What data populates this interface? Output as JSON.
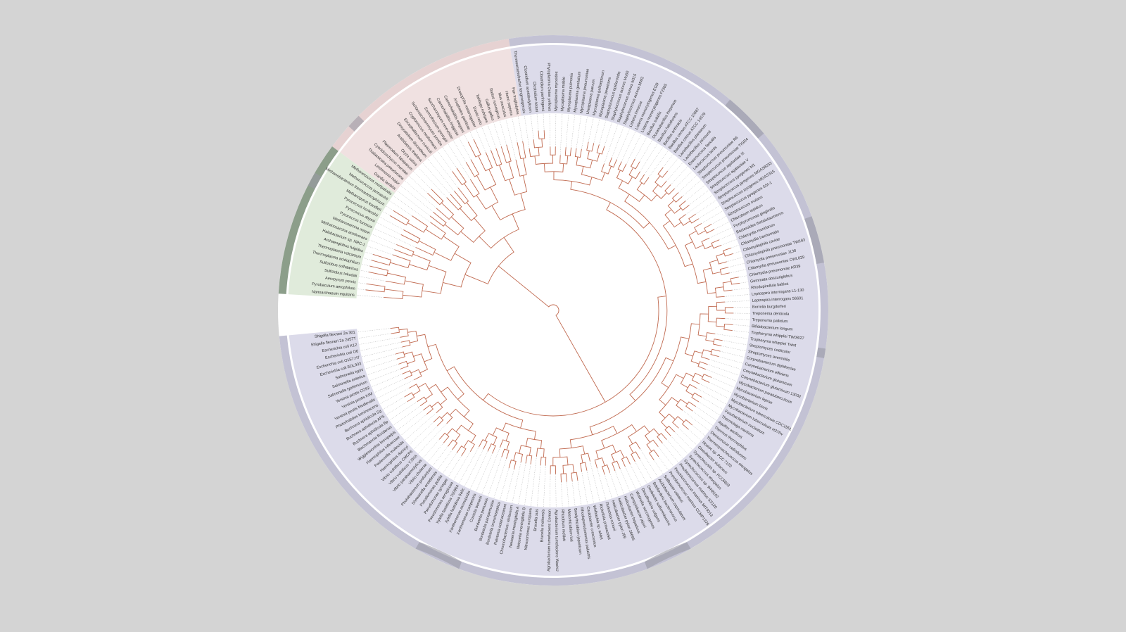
{
  "clades": [
    {
      "color": "#dcdbea",
      "band": "#c3c2d4",
      "leaves": [
        "Shigella flexneri 2a 301",
        "Shigella flexneri 2a 2457T",
        "Escherichia coli K12",
        "Escherichia coli O6",
        "Escherichia coli O157:H7",
        "Escherichia coli EDL933",
        "Salmonella typhi",
        "Salmonella enterica",
        "Salmonella typhimurium",
        "Yersinia pestis CO92",
        "Yersinia pestis KIM",
        "Yersinia pestis Medievalis",
        "Photorhabdus luminescens",
        "Buchnera aphidicola Sg",
        "Buchnera aphidicola APS",
        "Buchnera aphidicola Bp",
        "Blochmannia floridanus",
        "Wigglesworthia brevipalpis",
        "Haemophilus influenzae",
        "Pasteurella multocida",
        "Haemophilus ducreyi",
        "Vibrio vulnificus CMCP6",
        "Vibrio vulnificus YJ016",
        "Vibrio parahaemolyticus",
        "Vibrio cholerae",
        "Photobacterium profundum",
        "Shewanella oneidensis",
        "Pseudomonas putida",
        "Pseudomonas syringae",
        "Pseudomonas aeruginosa",
        "Xylella fastidiosa 700964",
        "Xylella fastidiosa 9a5c",
        "Xanthomonas axonopodis",
        "Xanthomonas campestris",
        "Coxiella burnetii",
        "Bordetella pertussis",
        "Bordetella parapertussis",
        "Bordetella bronchiseptica",
        "Ralstonia solanacearum",
        "Chromobacterium violaceum",
        "Neisseria meningitidis A",
        "Neisseria meningitidis B",
        "Nitrosomonas europaea",
        "Brucella suis",
        "Brucella melitensis",
        "Agrobacterium tumefaciens Cereon",
        "Agrobacterium tumefaciens WashU",
        "Rhizobium meliloti",
        "Mesorhizobium loti",
        "Bradyrhizobium japonicum",
        "Rhodopseudomonas palustris",
        "Caulobacter crescentus",
        "Wolbachia sp. wMel",
        "Rickettsia prowazekii",
        "Rickettsia conorii",
        "Helicobacter pylori J99",
        "Helicobacter pylori 26695",
        "Helicobacter hepaticus",
        "Campylobacter jejuni",
        "Wolinella succinogenes",
        "Desulfovibrio vulgaris",
        "Geobacter sulfurreducens",
        "Bdellovibrio bacteriovorus",
        "Acidobacterium capsulatum",
        "Solibacter usitatus",
        "Prochlorococcus marinus CCMP1378",
        "Prochlorococcus marinus MIT9313",
        "Prochlorococcus marinus SS120",
        "Synechococcus sp. WH8102",
        "Synechococcus elongatus",
        "Synechocystis sp. PCC6803",
        "Gloeobacter violaceus",
        "Nostoc sp. PCC 7120",
        "Thermosynechococcus elongatus",
        "Deinococcus radiodurans",
        "Thermus thermophilus",
        "Aquifex aeolicus",
        "Thermotoga maritima",
        "Fusobacterium nucleatum",
        "Mycobacterium tuberculosis H37Rv",
        "Mycobacterium tuberculosis CDC1551",
        "Mycobacterium bovis",
        "Mycobacterium leprae",
        "Mycobacterium paratuberculosis",
        "Corynebacterium glutamicum 13032",
        "Corynebacterium glutamicum",
        "Corynebacterium efficiens",
        "Corynebacterium diphtheriae",
        "Streptomyces avermitilis",
        "Streptomyces coelicolor",
        "Tropheryma whipplei Twist",
        "Tropheryma whipplei TW08/27",
        "Bifidobacterium longum",
        "Treponema pallidum",
        "Treponema denticola",
        "Borrelia burgdorferi",
        "Leptospira interrogans 56601",
        "Leptospira interrogans L1-130",
        "Rhodopirellula baltica",
        "Gemmata obscuriglobus",
        "Chlamydia pneumoniae AR39",
        "Chlamydia pneumoniae CWL029",
        "Chlamydia pneumoniae J138",
        "Chlamydophila pneumoniae TW183",
        "Chlamydophila caviae",
        "Chlamydia trachomatis",
        "Chlamydia muridarum",
        "Bacteroides thetaiotaomicron",
        "Porphyromonas gingivalis",
        "Chlorobium tepidum",
        "Streptococcus mutans",
        "Streptococcus pyogenes SSI-1",
        "Streptococcus pyogenes MGAS315",
        "Streptococcus pyogenes MGAS8232",
        "Streptococcus pyogenes M1",
        "Streptococcus agalactiae V",
        "Streptococcus agalactiae III",
        "Streptococcus pneumoniae TIGR4",
        "Streptococcus pneumoniae R6",
        "Lactococcus lactis",
        "Enterococcus faecalis",
        "Lactobacillus johnsonii",
        "Lactobacillus plantarum",
        "Bacillus cereus ATCC 14579",
        "Bacillus cereus ATCC 10987",
        "Bacillus anthracis",
        "Bacillus halodurans",
        "Oceanobacillus iheyensis",
        "Bacillus subtilis",
        "Listeria monocytogenes F2365",
        "Listeria monocytogenes EGD",
        "Listeria innocua",
        "Staphylococcus aureus MW2",
        "Staphylococcus aureus N315",
        "Staphylococcus aureus Mu50",
        "Staphylococcus epidermidis",
        "Mycoplasma penetrans",
        "Mycoplasma gallisepticum",
        "Ureaplasma parvum",
        "Mycoplasma pneumoniae",
        "Mycoplasma genitalium",
        "Mycoplasma pulmonis",
        "Mycoplasma mobile",
        "Mycoplasma mycoides",
        "Phytoplasma Onion yellows",
        "Clostridium perfringens",
        "Clostridium tetani",
        "Clostridium acetobutylicum",
        "Thermoanaerobacter tengcongensis"
      ]
    },
    {
      "color": "#f0e1e1",
      "band": "#e6d2d2",
      "leaves": [
        "Pan troglodytes",
        "Homo sapiens",
        "Mus musculus",
        "Rattus norvegicus",
        "Gallus gallus",
        "Takifugu rubripes",
        "Danio rerio",
        "Drosophila melanogaster",
        "Anopheles gambiae",
        "Caenorhabditis elegans",
        "Caenorhabditis briggsae",
        "Saccharomyces cerevisiae",
        "Eremothecium gossypii",
        "Schizosaccharomyces pombe",
        "Cryptococcus neoformans",
        "Encephalitozoon cuniculi",
        "Dictyostelium discoideum",
        "Arabidopsis thaliana",
        "Oryza sativa",
        "Plasmodium falciparum",
        "Cyanidioschyzon merolae",
        "Thalassiosira pseudonana",
        "Leishmania major",
        "Giardia lamblia"
      ]
    },
    {
      "color": "#e0ebdb",
      "band": "#8c9e8a",
      "leaves": [
        "Methanococcus maripaludis",
        "Methanococcus jannaschii",
        "Methanobacterium thermautotrophicum",
        "Methanopyrus kandleri",
        "Pyrococcus horikoshii",
        "Pyrococcus abyssi",
        "Pyrococcus furiosus",
        "Methanosarcina mazei",
        "Methanosarcina acetivorans",
        "Halobacterium sp. NRC-1",
        "Archaeoglobus fulgidus",
        "Thermoplasma volcanium",
        "Thermoplasma acidophilum",
        "Sulfolobus solfataricus",
        "Sulfolobus tokodaii",
        "Aeropyrum pernix",
        "Pyrobaculum aerophilum",
        "Nanoarchaeum equitans"
      ]
    }
  ]
}
